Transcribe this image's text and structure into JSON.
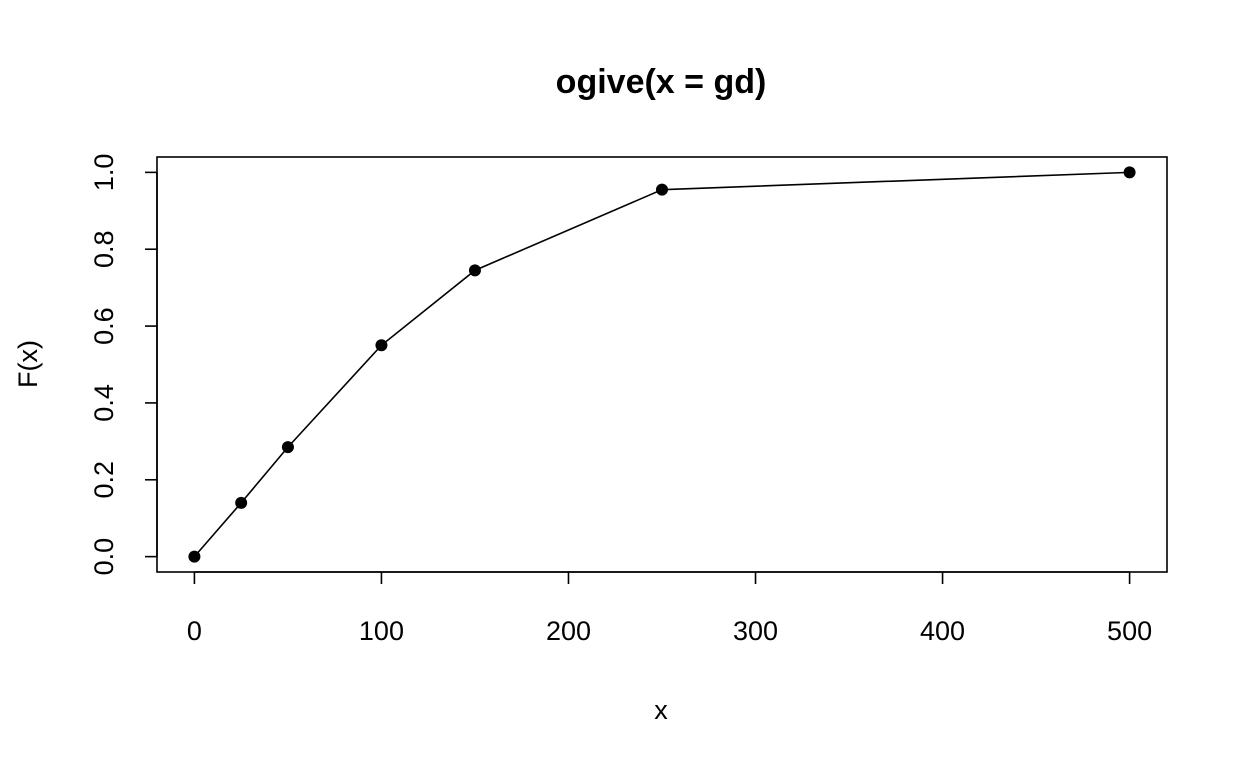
{
  "chart_data": {
    "type": "line",
    "title": "ogive(x = gd)",
    "xlabel": "x",
    "ylabel": "F(x)",
    "xlim": [
      -20,
      520
    ],
    "ylim": [
      -0.04,
      1.04
    ],
    "xticks": [
      0,
      100,
      200,
      300,
      400,
      500
    ],
    "xtick_labels": [
      "0",
      "100",
      "200",
      "300",
      "400",
      "500"
    ],
    "yticks": [
      0.0,
      0.2,
      0.4,
      0.6,
      0.8,
      1.0
    ],
    "ytick_labels": [
      "0.0",
      "0.2",
      "0.4",
      "0.6",
      "0.8",
      "1.0"
    ],
    "grid": false,
    "series": [
      {
        "x": [
          0,
          25,
          50,
          100,
          150,
          250,
          500
        ],
        "y": [
          0.0,
          0.14,
          0.285,
          0.55,
          0.745,
          0.955,
          1.0
        ]
      }
    ]
  }
}
